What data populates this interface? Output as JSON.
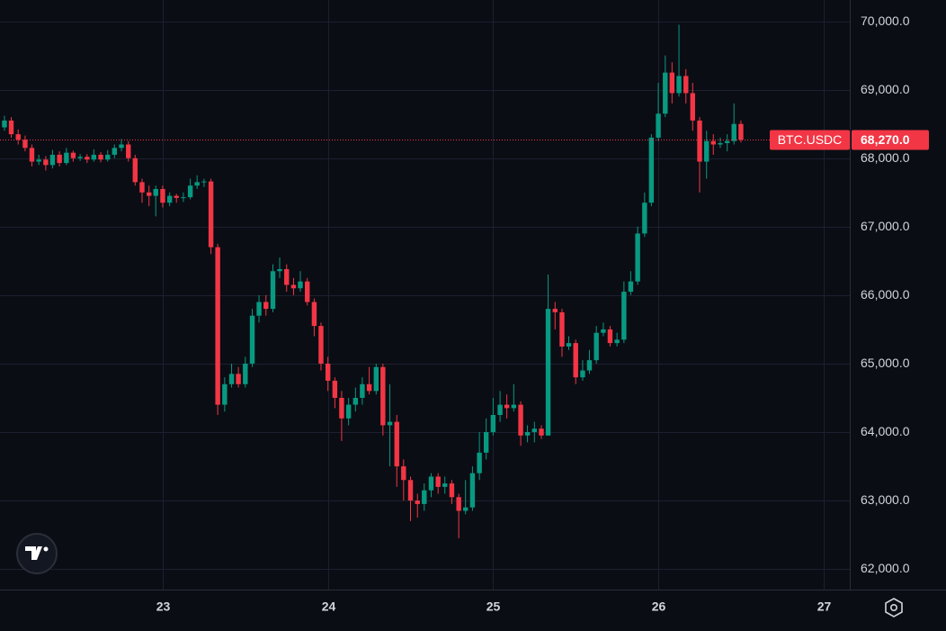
{
  "chart_data": {
    "type": "candlestick",
    "symbol": "BTC.USDC",
    "last_price": {
      "value": 68270,
      "label": "68,270.0"
    },
    "up_color": "#089981",
    "down_color": "#f23645",
    "grid": true,
    "xlim": [
      22.015,
      27.159
    ],
    "ylim": [
      61700,
      70310
    ],
    "xticks": [
      23,
      24,
      25,
      26,
      27
    ],
    "yticks": [
      {
        "value": 62000,
        "label": "62,000.0"
      },
      {
        "value": 63000,
        "label": "63,000.0"
      },
      {
        "value": 64000,
        "label": "64,000.0"
      },
      {
        "value": 65000,
        "label": "65,000.0"
      },
      {
        "value": 66000,
        "label": "66,000.0"
      },
      {
        "value": 67000,
        "label": "67,000.0"
      },
      {
        "value": 68000,
        "label": "68,000.0"
      },
      {
        "value": 69000,
        "label": "69,000.0"
      },
      {
        "value": 70000,
        "label": "70,000.0"
      }
    ],
    "x": [
      22.042,
      22.083,
      22.125,
      22.167,
      22.208,
      22.25,
      22.292,
      22.333,
      22.375,
      22.417,
      22.458,
      22.5,
      22.542,
      22.583,
      22.625,
      22.667,
      22.708,
      22.75,
      22.792,
      22.833,
      22.875,
      22.917,
      22.958,
      23,
      23.042,
      23.083,
      23.125,
      23.167,
      23.208,
      23.25,
      23.292,
      23.333,
      23.375,
      23.417,
      23.458,
      23.5,
      23.542,
      23.583,
      23.625,
      23.667,
      23.708,
      23.75,
      23.792,
      23.833,
      23.875,
      23.917,
      23.958,
      24,
      24.042,
      24.083,
      24.125,
      24.167,
      24.208,
      24.25,
      24.292,
      24.333,
      24.375,
      24.417,
      24.458,
      24.5,
      24.542,
      24.583,
      24.625,
      24.667,
      24.708,
      24.75,
      24.792,
      24.833,
      24.875,
      24.917,
      24.958,
      25,
      25.042,
      25.083,
      25.125,
      25.167,
      25.208,
      25.25,
      25.292,
      25.333,
      25.375,
      25.417,
      25.458,
      25.5,
      25.542,
      25.583,
      25.625,
      25.667,
      25.708,
      25.75,
      25.792,
      25.833,
      25.875,
      25.917,
      25.958,
      26,
      26.042,
      26.083,
      26.125,
      26.167,
      26.208,
      26.25,
      26.292,
      26.333,
      26.375,
      26.417,
      26.458,
      26.5
    ],
    "open": [
      68450,
      68550,
      68350,
      68270,
      68150,
      67950,
      67980,
      67900,
      68050,
      67930,
      68080,
      68000,
      68020,
      67980,
      68050,
      67980,
      68050,
      68150,
      68200,
      68000,
      67650,
      67500,
      67450,
      67550,
      67350,
      67450,
      67420,
      67430,
      67600,
      67650,
      67660,
      66700,
      64400,
      64700,
      64850,
      64700,
      65000,
      65700,
      65900,
      65800,
      66350,
      66380,
      66150,
      66100,
      66200,
      65900,
      65550,
      65000,
      64750,
      64500,
      64200,
      64400,
      64500,
      64700,
      64600,
      64950,
      64100,
      64150,
      63500,
      63300,
      63000,
      62950,
      63150,
      63350,
      63200,
      63250,
      63050,
      62850,
      62900,
      63400,
      63700,
      64000,
      64250,
      64400,
      64350,
      64400,
      63950,
      64000,
      64050,
      63950,
      65800,
      65750,
      65250,
      65300,
      64800,
      64900,
      65050,
      65450,
      65500,
      65300,
      65350,
      66050,
      66200,
      66900,
      67350,
      68300,
      68650,
      69250,
      68950,
      69200,
      68950,
      68550,
      67950,
      68250,
      68200,
      68220,
      68250,
      68500
    ],
    "high": [
      68620,
      68600,
      68420,
      68330,
      68200,
      68050,
      68030,
      68120,
      68100,
      68150,
      68110,
      68060,
      68060,
      68130,
      68090,
      68120,
      68200,
      68280,
      68250,
      68050,
      67700,
      67600,
      67600,
      67600,
      67500,
      67480,
      67500,
      67700,
      67750,
      67700,
      67700,
      66750,
      64800,
      65000,
      64950,
      65100,
      65800,
      66000,
      66000,
      66450,
      66550,
      66450,
      66250,
      66350,
      66250,
      65950,
      65600,
      65100,
      64800,
      64600,
      64500,
      64650,
      64800,
      64950,
      65000,
      65000,
      64700,
      64250,
      63600,
      63350,
      63100,
      63250,
      63400,
      63400,
      63350,
      63300,
      63100,
      63300,
      63500,
      64000,
      64200,
      64500,
      64600,
      64550,
      64700,
      64450,
      64100,
      64150,
      64100,
      66300,
      65900,
      65800,
      65400,
      65350,
      65050,
      65200,
      65550,
      65600,
      65550,
      65450,
      66200,
      66350,
      67000,
      67500,
      68350,
      69100,
      69500,
      69400,
      69950,
      69300,
      69100,
      68600,
      68400,
      68350,
      68300,
      68350,
      68800,
      68550
    ],
    "low": [
      68400,
      68300,
      68200,
      68100,
      67880,
      67900,
      67820,
      67850,
      67880,
      67900,
      67950,
      67960,
      67930,
      67950,
      67940,
      67950,
      68000,
      68100,
      67950,
      67600,
      67350,
      67300,
      67150,
      67280,
      67300,
      67350,
      67360,
      67400,
      67550,
      67580,
      66600,
      64250,
      64300,
      64650,
      64650,
      64650,
      64950,
      65600,
      65700,
      65750,
      66250,
      66050,
      66000,
      66050,
      65850,
      65400,
      64900,
      64600,
      64350,
      63870,
      64100,
      64300,
      64400,
      64550,
      64550,
      63950,
      63500,
      63200,
      63000,
      62700,
      62750,
      62850,
      63050,
      63100,
      63100,
      62950,
      62450,
      62800,
      62850,
      63300,
      63600,
      63950,
      64150,
      64200,
      64300,
      63800,
      63850,
      63850,
      63900,
      63950,
      65500,
      65100,
      65200,
      64700,
      64750,
      64850,
      65000,
      65400,
      65250,
      65250,
      65300,
      66000,
      66150,
      66850,
      67300,
      68250,
      68600,
      68800,
      68900,
      68800,
      68400,
      67500,
      67700,
      68050,
      68150,
      68100,
      68200,
      68230
    ],
    "close": [
      68550,
      68350,
      68270,
      68150,
      67950,
      67980,
      67900,
      68050,
      67930,
      68080,
      68000,
      68020,
      67980,
      68050,
      67980,
      68050,
      68150,
      68200,
      68000,
      67650,
      67500,
      67450,
      67550,
      67350,
      67450,
      67420,
      67430,
      67600,
      67650,
      67660,
      66700,
      64400,
      64700,
      64850,
      64700,
      65000,
      65700,
      65900,
      65800,
      66350,
      66380,
      66150,
      66100,
      66200,
      65900,
      65550,
      65000,
      64750,
      64500,
      64200,
      64400,
      64500,
      64700,
      64600,
      64950,
      64100,
      64150,
      63500,
      63300,
      63000,
      62950,
      63150,
      63350,
      63200,
      63250,
      63050,
      62850,
      62900,
      63400,
      63700,
      64000,
      64250,
      64400,
      64350,
      64400,
      63950,
      64000,
      64050,
      63950,
      65800,
      65750,
      65250,
      65300,
      64800,
      64900,
      65050,
      65450,
      65500,
      65300,
      65350,
      66050,
      66200,
      66900,
      67350,
      68300,
      68650,
      69250,
      68950,
      69200,
      68950,
      68550,
      67950,
      68250,
      68200,
      68220,
      68250,
      68500,
      68270
    ]
  }
}
